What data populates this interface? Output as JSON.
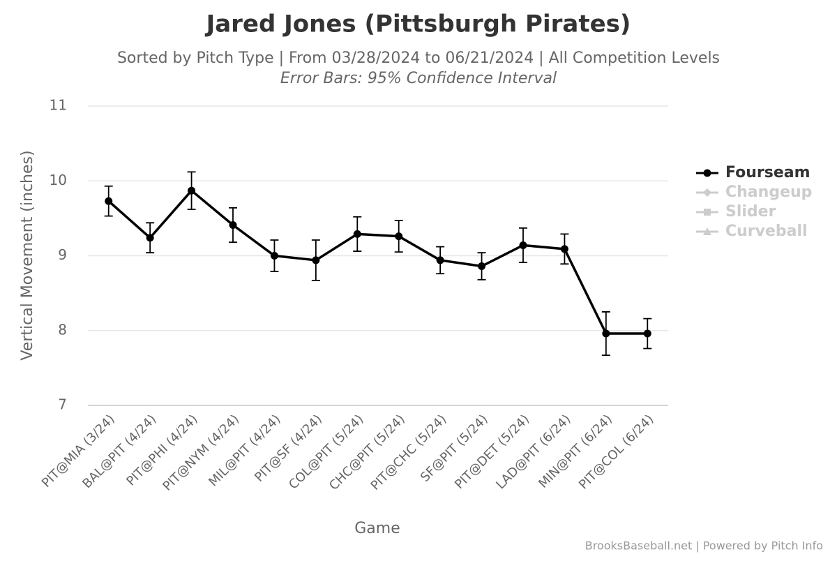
{
  "chart_data": {
    "type": "line",
    "title": "Jared Jones (Pittsburgh Pirates)",
    "subtitle": "Sorted by Pitch Type | From 03/28/2024 to 06/21/2024 | All Competition Levels",
    "note": "Error Bars: 95% Confidence Interval",
    "x_label": "Game",
    "y_label": "Vertical Movement (inches)",
    "credit": "BrooksBaseball.net | Powered by Pitch Info",
    "categories": [
      "PIT@MIA (3/24)",
      "BAL@PIT (4/24)",
      "PIT@PHI (4/24)",
      "PIT@NYM (4/24)",
      "MIL@PIT (4/24)",
      "PIT@SF (4/24)",
      "COL@PIT (5/24)",
      "CHC@PIT (5/24)",
      "PIT@CHC (5/24)",
      "SF@PIT (5/24)",
      "PIT@DET (5/24)",
      "LAD@PIT (6/24)",
      "MIN@PIT (6/24)",
      "PIT@COL (6/24)"
    ],
    "series": [
      {
        "name": "Fourseam",
        "color": "#000000",
        "marker": "circle",
        "visible": true,
        "values": [
          9.73,
          9.24,
          9.87,
          9.41,
          9.0,
          8.94,
          9.29,
          9.26,
          8.94,
          8.86,
          9.14,
          9.09,
          7.96,
          7.96
        ],
        "errors": [
          0.2,
          0.2,
          0.25,
          0.23,
          0.21,
          0.27,
          0.23,
          0.21,
          0.18,
          0.18,
          0.23,
          0.2,
          0.29,
          0.2
        ]
      },
      {
        "name": "Changeup",
        "color": "#cccccc",
        "marker": "diamond",
        "visible": false,
        "values": [
          null,
          null,
          null,
          null,
          null,
          null,
          null,
          null,
          null,
          null,
          null,
          null,
          null,
          null
        ]
      },
      {
        "name": "Slider",
        "color": "#cccccc",
        "marker": "square",
        "visible": false,
        "values": [
          null,
          null,
          null,
          null,
          null,
          null,
          null,
          null,
          null,
          null,
          null,
          null,
          null,
          null
        ]
      },
      {
        "name": "Curveball",
        "color": "#cccccc",
        "marker": "triangle",
        "visible": false,
        "values": [
          null,
          null,
          null,
          null,
          null,
          null,
          null,
          null,
          null,
          null,
          null,
          null,
          null,
          null
        ]
      }
    ],
    "ylim": [
      7,
      11
    ],
    "yticks": [
      7,
      8,
      9,
      10,
      11
    ],
    "grid": true,
    "legend": "right"
  }
}
